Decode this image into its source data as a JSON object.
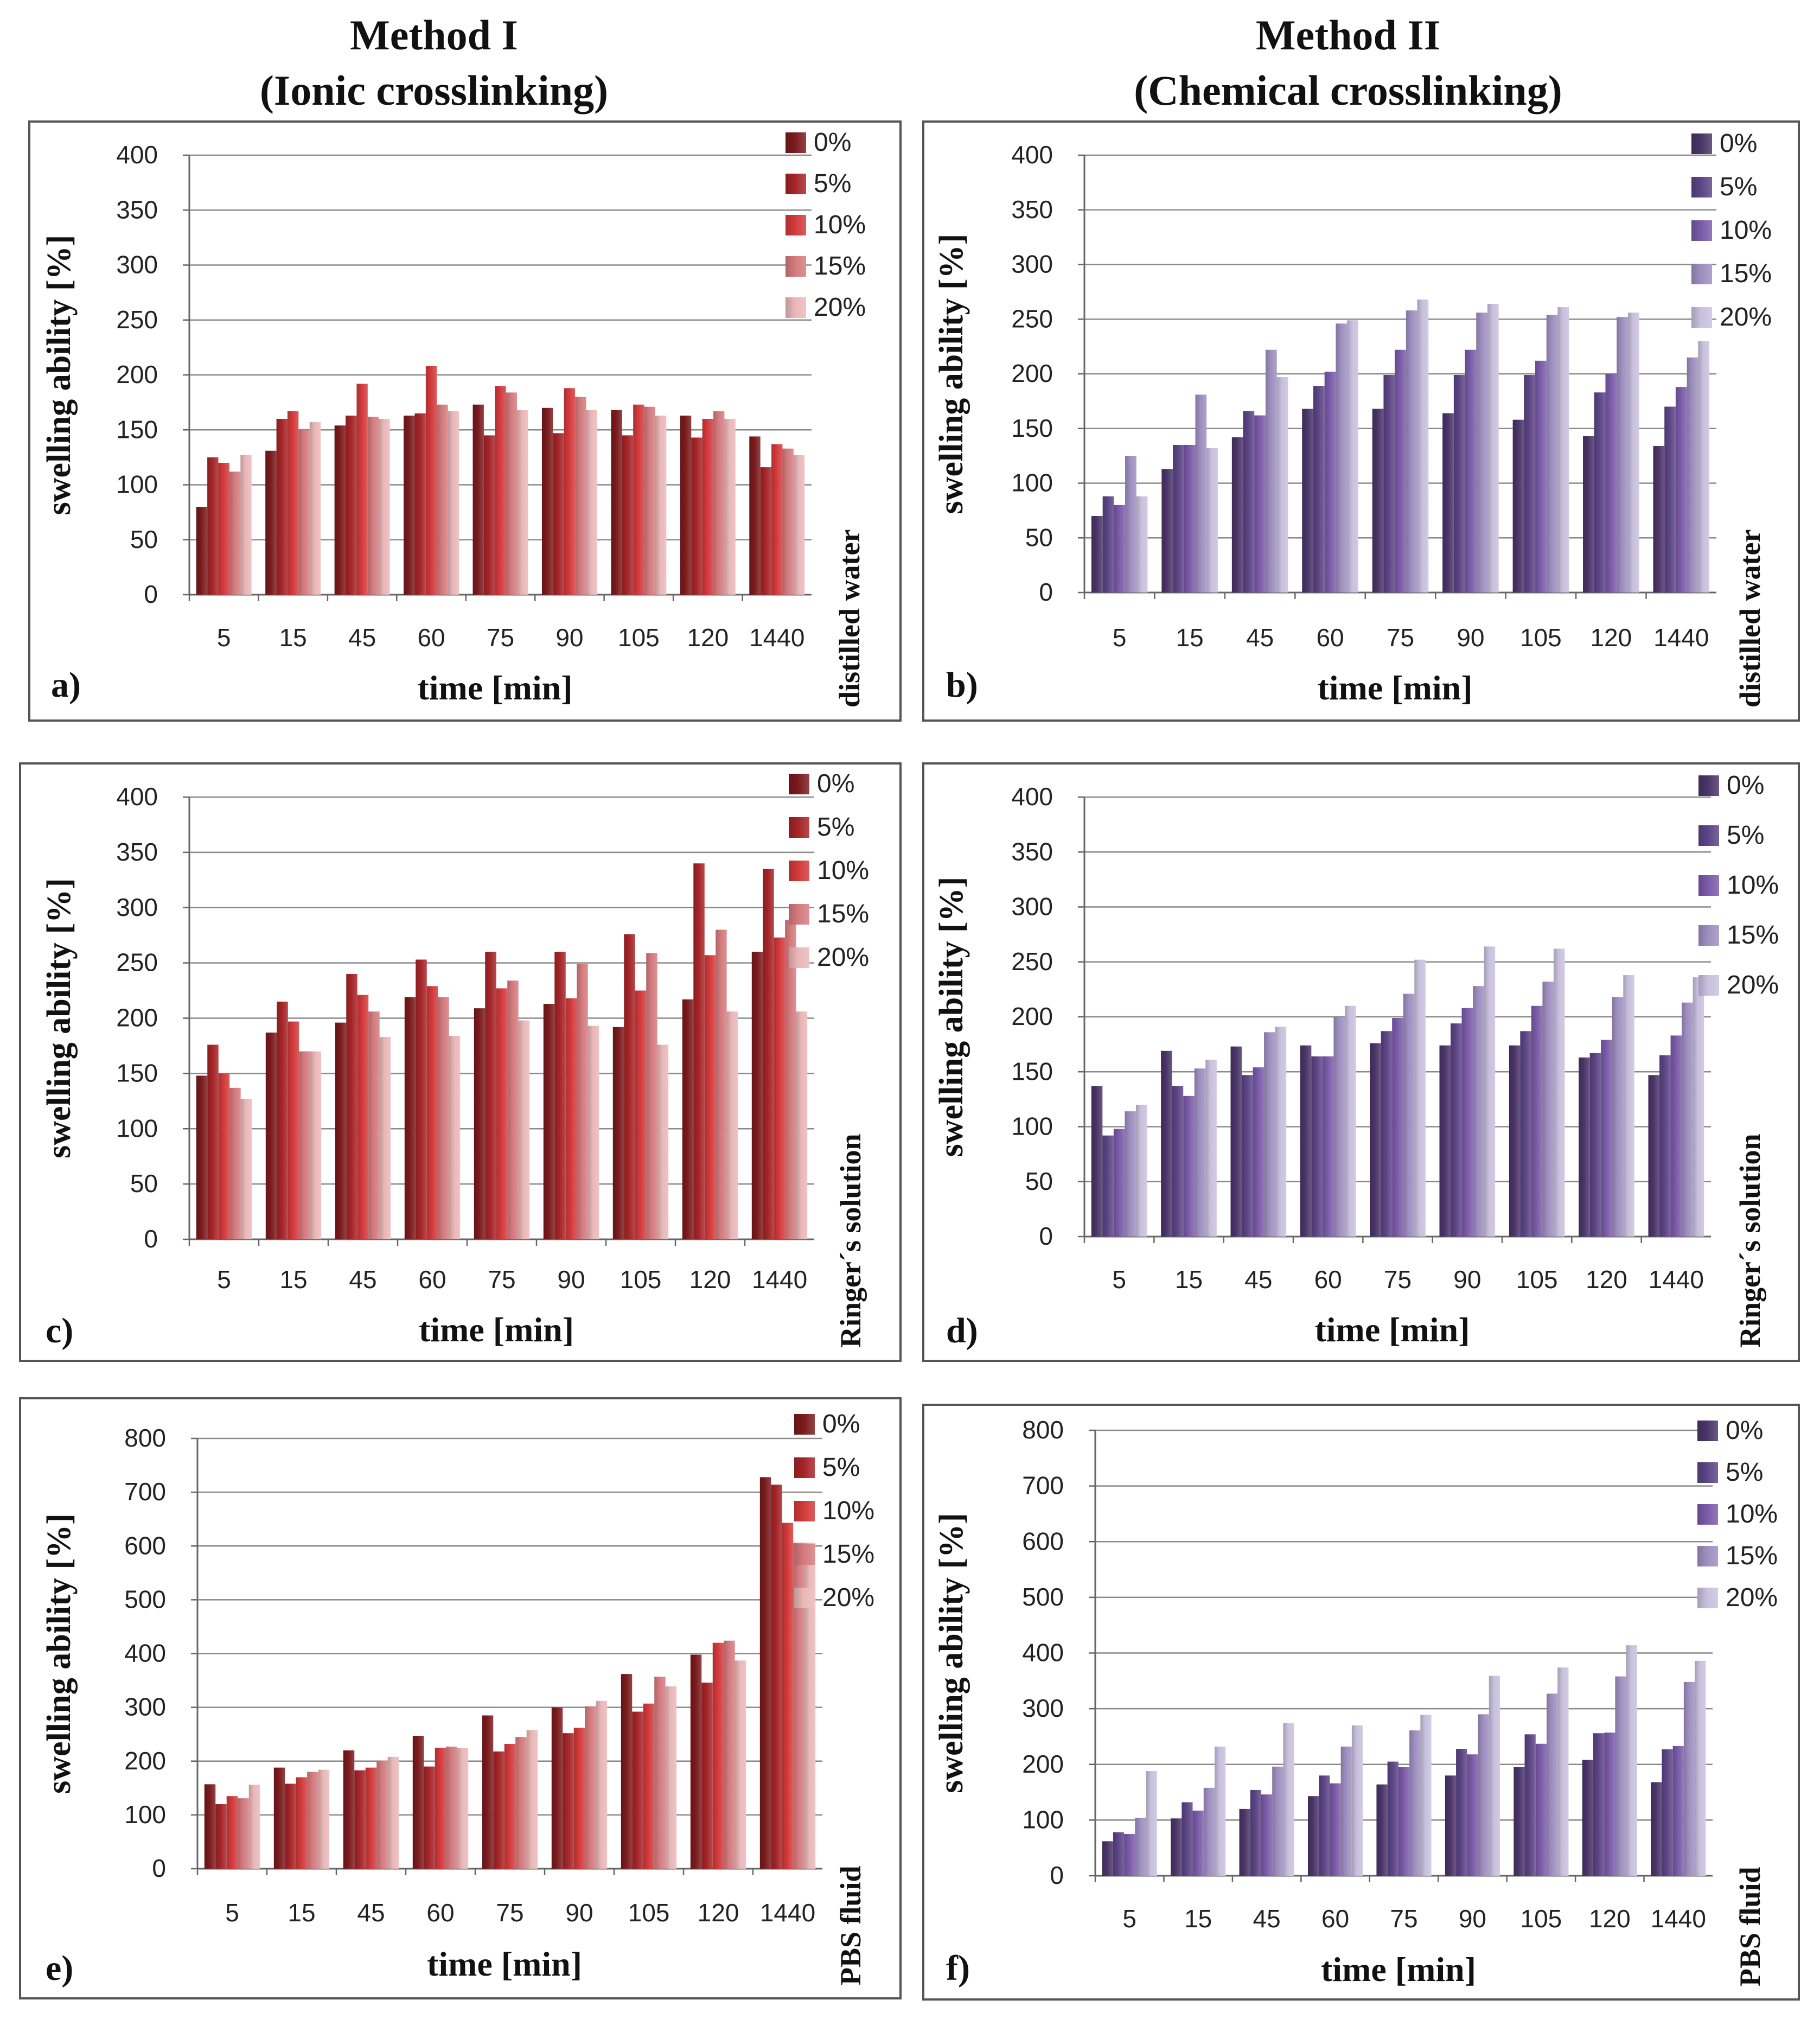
{
  "headers": {
    "method1": {
      "line1": "Method I",
      "line2": "(Ionic crosslinking)"
    },
    "method2": {
      "line1": "Method II",
      "line2": "(Chemical crosslinking)"
    }
  },
  "colors": {
    "red": [
      "#7a1a1c",
      "#a52427",
      "#d3393b",
      "#d47a7d",
      "#eab7b8"
    ],
    "purple": [
      "#4a3468",
      "#5c4485",
      "#7a5aa8",
      "#9e8ec0",
      "#c8c0dd"
    ]
  },
  "chart_data": [
    {
      "type": "bar",
      "panel_label": "a)",
      "side_label": "distilled water",
      "xlabel": "time [min]",
      "ylabel": "swelling ability [%]",
      "ylim": [
        0,
        400
      ],
      "yticks": [
        "0",
        "50",
        "100",
        "150",
        "200",
        "250",
        "300",
        "350",
        "400"
      ],
      "categories": [
        "5",
        "15",
        "45",
        "60",
        "75",
        "90",
        "105",
        "120",
        "1440"
      ],
      "series": [
        {
          "name": "0%",
          "values": [
            80,
            131,
            154,
            163,
            173,
            170,
            168,
            163,
            144
          ]
        },
        {
          "name": "5%",
          "values": [
            125,
            160,
            163,
            165,
            145,
            147,
            145,
            143,
            116
          ]
        },
        {
          "name": "10%",
          "values": [
            120,
            167,
            192,
            208,
            190,
            188,
            173,
            160,
            137
          ]
        },
        {
          "name": "15%",
          "values": [
            112,
            150,
            162,
            173,
            184,
            180,
            171,
            167,
            133
          ]
        },
        {
          "name": "20%",
          "values": [
            127,
            157,
            160,
            167,
            168,
            168,
            163,
            160,
            127
          ]
        }
      ]
    },
    {
      "type": "bar",
      "panel_label": "b)",
      "side_label": "distilled water",
      "xlabel": "time [min]",
      "ylabel": "swelling ability [%]",
      "ylim": [
        0,
        400
      ],
      "yticks": [
        "0",
        "50",
        "100",
        "150",
        "200",
        "250",
        "300",
        "350",
        "400"
      ],
      "categories": [
        "5",
        "15",
        "45",
        "60",
        "75",
        "90",
        "105",
        "120",
        "1440"
      ],
      "series": [
        {
          "name": "0%",
          "values": [
            70,
            113,
            142,
            168,
            168,
            164,
            158,
            143,
            134
          ]
        },
        {
          "name": "5%",
          "values": [
            88,
            135,
            166,
            189,
            199,
            199,
            199,
            183,
            170
          ]
        },
        {
          "name": "10%",
          "values": [
            80,
            135,
            162,
            202,
            222,
            222,
            212,
            200,
            188
          ]
        },
        {
          "name": "15%",
          "values": [
            125,
            181,
            222,
            246,
            258,
            256,
            254,
            252,
            215
          ]
        },
        {
          "name": "20%",
          "values": [
            88,
            132,
            197,
            249,
            268,
            264,
            261,
            256,
            230
          ]
        }
      ]
    },
    {
      "type": "bar",
      "panel_label": "c)",
      "side_label": "Ringer´s solution",
      "xlabel": "time [min]",
      "ylabel": "swelling ability [%]",
      "ylim": [
        0,
        400
      ],
      "yticks": [
        "0",
        "50",
        "100",
        "150",
        "200",
        "250",
        "300",
        "350",
        "400"
      ],
      "categories": [
        "5",
        "15",
        "45",
        "60",
        "75",
        "90",
        "105",
        "120",
        "1440"
      ],
      "series": [
        {
          "name": "0%",
          "values": [
            148,
            187,
            196,
            219,
            209,
            213,
            192,
            217,
            260
          ]
        },
        {
          "name": "5%",
          "values": [
            176,
            215,
            240,
            253,
            260,
            260,
            276,
            340,
            335
          ]
        },
        {
          "name": "10%",
          "values": [
            150,
            197,
            221,
            229,
            227,
            218,
            225,
            257,
            273
          ]
        },
        {
          "name": "15%",
          "values": [
            137,
            170,
            206,
            219,
            234,
            249,
            259,
            280,
            289
          ]
        },
        {
          "name": "20%",
          "values": [
            127,
            170,
            183,
            184,
            198,
            193,
            176,
            206,
            206
          ]
        }
      ]
    },
    {
      "type": "bar",
      "panel_label": "d)",
      "side_label": "Ringer´s solution",
      "xlabel": "time [min]",
      "ylabel": "swelling ability [%]",
      "ylim": [
        0,
        400
      ],
      "yticks": [
        "0",
        "50",
        "100",
        "150",
        "200",
        "250",
        "300",
        "350",
        "400"
      ],
      "categories": [
        "5",
        "15",
        "45",
        "60",
        "75",
        "90",
        "105",
        "120",
        "1440"
      ],
      "series": [
        {
          "name": "0%",
          "values": [
            137,
            169,
            173,
            174,
            176,
            174,
            174,
            163,
            147
          ]
        },
        {
          "name": "5%",
          "values": [
            92,
            137,
            147,
            164,
            187,
            194,
            187,
            167,
            165
          ]
        },
        {
          "name": "10%",
          "values": [
            98,
            128,
            154,
            164,
            199,
            208,
            210,
            179,
            183
          ]
        },
        {
          "name": "15%",
          "values": [
            114,
            153,
            186,
            200,
            221,
            228,
            232,
            218,
            213
          ]
        },
        {
          "name": "20%",
          "values": [
            120,
            161,
            191,
            210,
            252,
            264,
            262,
            238,
            236
          ]
        }
      ]
    },
    {
      "type": "bar",
      "panel_label": "e)",
      "side_label": "PBS fluid",
      "xlabel": "time [min]",
      "ylabel": "swelling ability [%]",
      "ylim": [
        0,
        800
      ],
      "yticks": [
        "0",
        "100",
        "200",
        "300",
        "400",
        "500",
        "600",
        "700",
        "800"
      ],
      "categories": [
        "5",
        "15",
        "45",
        "60",
        "75",
        "90",
        "105",
        "120",
        "1440"
      ],
      "series": [
        {
          "name": "0%",
          "values": [
            157,
            188,
            220,
            247,
            285,
            300,
            362,
            398,
            728
          ]
        },
        {
          "name": "5%",
          "values": [
            120,
            158,
            183,
            190,
            218,
            252,
            292,
            346,
            714
          ]
        },
        {
          "name": "10%",
          "values": [
            135,
            170,
            188,
            225,
            232,
            262,
            307,
            420,
            643
          ]
        },
        {
          "name": "15%",
          "values": [
            131,
            180,
            201,
            227,
            245,
            302,
            357,
            424,
            606
          ]
        },
        {
          "name": "20%",
          "values": [
            156,
            184,
            208,
            224,
            258,
            312,
            339,
            387,
            606
          ]
        }
      ]
    },
    {
      "type": "bar",
      "panel_label": "f)",
      "side_label": "PBS fluid",
      "xlabel": "time [min]",
      "ylabel": "swelling ability [%]",
      "ylim": [
        0,
        800
      ],
      "yticks": [
        "0",
        "100",
        "200",
        "300",
        "400",
        "500",
        "600",
        "700",
        "800"
      ],
      "categories": [
        "5",
        "15",
        "45",
        "60",
        "75",
        "90",
        "105",
        "120",
        "1440"
      ],
      "series": [
        {
          "name": "0%",
          "values": [
            62,
            103,
            120,
            143,
            164,
            180,
            195,
            208,
            168
          ]
        },
        {
          "name": "5%",
          "values": [
            78,
            132,
            154,
            180,
            205,
            228,
            254,
            256,
            227
          ]
        },
        {
          "name": "10%",
          "values": [
            75,
            117,
            146,
            166,
            195,
            218,
            237,
            257,
            233
          ]
        },
        {
          "name": "15%",
          "values": [
            104,
            158,
            196,
            232,
            261,
            290,
            327,
            358,
            348
          ]
        },
        {
          "name": "20%",
          "values": [
            188,
            232,
            274,
            270,
            289,
            359,
            374,
            414,
            386
          ]
        }
      ]
    }
  ]
}
